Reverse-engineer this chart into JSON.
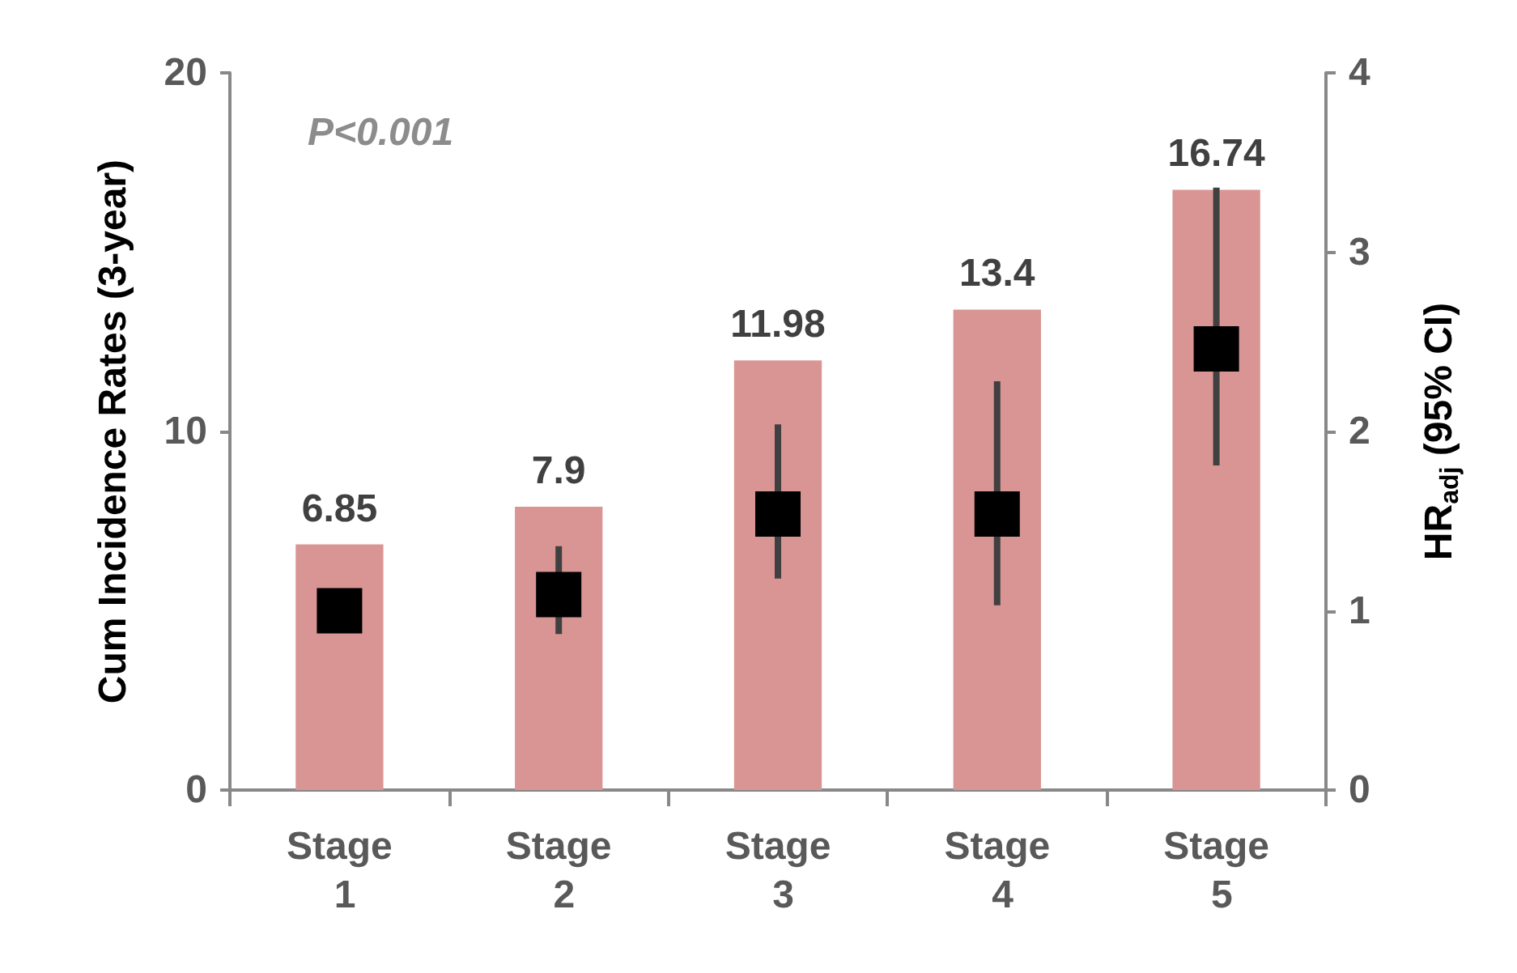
{
  "chart_data": {
    "type": "bar",
    "categories": [
      "Stage 1",
      "Stage 2",
      "Stage 3",
      "Stage 4",
      "Stage 5"
    ],
    "ylabel": "Cum Incidence Rates (3-year)",
    "y2label": "HR$_{adj}$ (95% CI)",
    "ylim": [
      0,
      20
    ],
    "yticks": [
      0,
      10,
      20
    ],
    "y2lim": [
      0,
      4
    ],
    "y2ticks": [
      0,
      1,
      2,
      3,
      4
    ],
    "grid": false,
    "annotations": [
      "P<0.001"
    ],
    "series": [
      {
        "color": "#d99594",
        "values": [
          6.85,
          7.9,
          11.98,
          13.4,
          16.74
        ],
        "value_labels": [
          "6.85",
          "7.9",
          "11.98",
          "13.4",
          "16.74"
        ]
      },
      {
        "type": "scatter",
        "axis": "y2",
        "color": "#000000",
        "marker": "square",
        "values": [
          1.0,
          1.09,
          1.54,
          1.54,
          2.46
        ],
        "errors": [
          null,
          [
            0.87,
            1.36
          ],
          [
            1.18,
            2.04
          ],
          [
            1.03,
            2.28
          ],
          [
            1.81,
            3.36
          ]
        ]
      }
    ]
  }
}
